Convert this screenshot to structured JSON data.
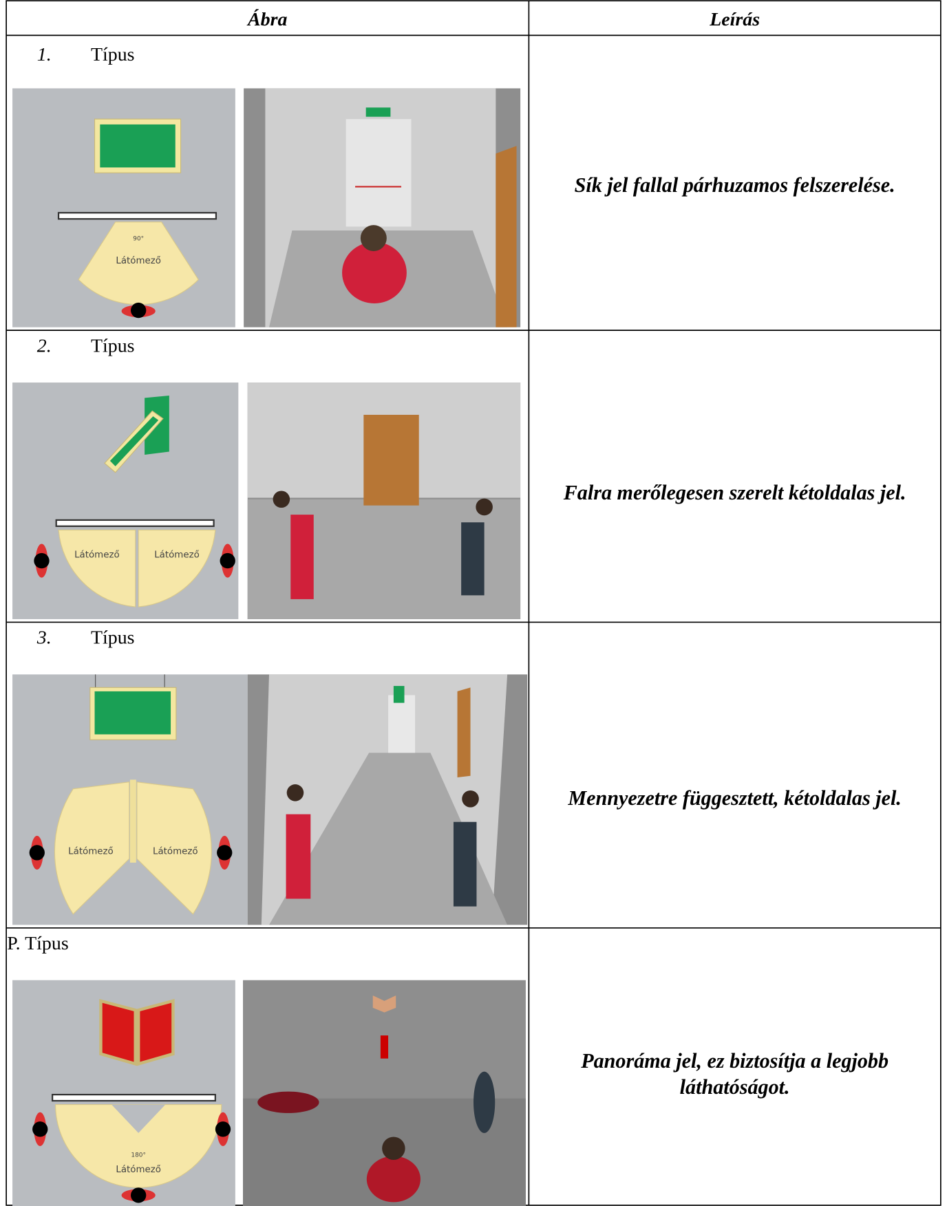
{
  "table": {
    "header": [
      "Ábra",
      "Leírás"
    ],
    "rows": [
      {
        "number": "1.",
        "label": "Típus",
        "diagram_texts": [
          "90°",
          "Látómező"
        ],
        "description": [
          "Sík jel fallal párhuzamos felszerelése."
        ]
      },
      {
        "number": "2.",
        "label": "Típus",
        "diagram_texts": [
          "Látómező",
          "Látómező"
        ],
        "description": [
          "Falra merőlegesen szerelt kétoldalas jel."
        ]
      },
      {
        "number": "3.",
        "label": "Típus",
        "diagram_texts": [
          "Látómező",
          "Látómező"
        ],
        "description": [
          "Mennyezetre függesztett, kétoldalas jel."
        ]
      },
      {
        "label": "P. Típus",
        "diagram_texts": [
          "180°",
          "Látómező"
        ],
        "description": [
          "Panoráma jel, ez biztosítja a legjobb",
          "láthatóságot."
        ]
      }
    ]
  }
}
